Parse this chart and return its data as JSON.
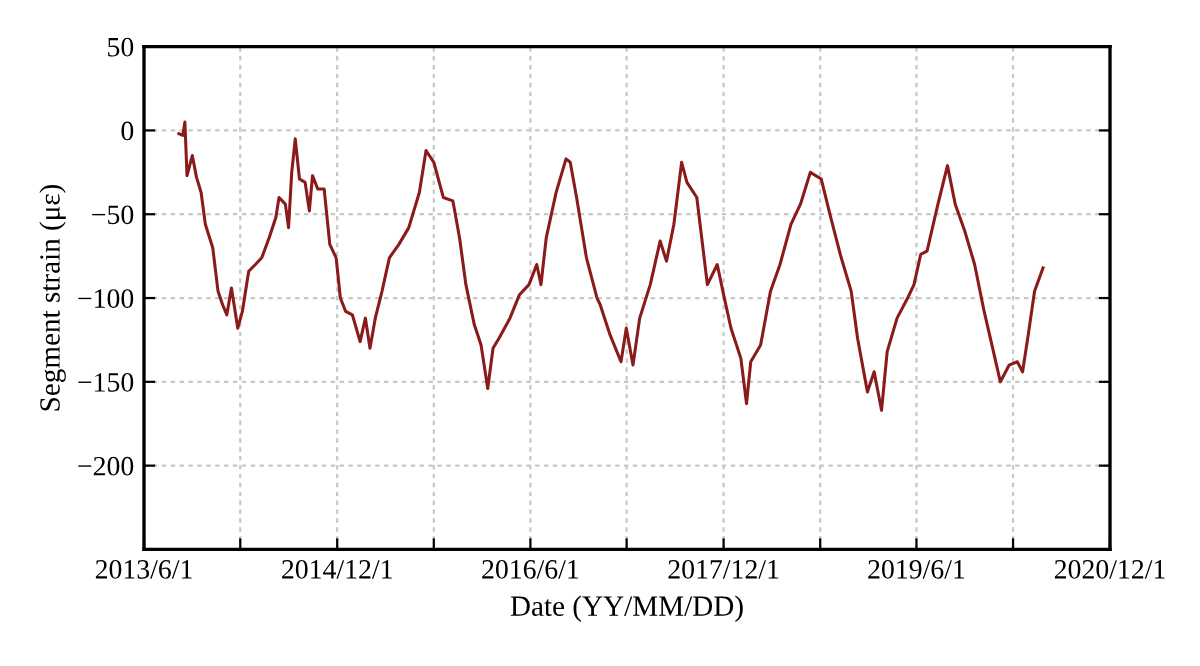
{
  "chart_data": {
    "type": "line",
    "xlabel": "Date (YY/MM/DD)",
    "ylabel": "Segment strain (με)",
    "xlim": [
      "2013-06-01",
      "2020-12-01"
    ],
    "ylim": [
      -250,
      50
    ],
    "yticks": [
      -200,
      -150,
      -100,
      -50,
      0,
      50
    ],
    "xticks": [
      {
        "value": "2013-06-01",
        "label": "2013/6/1"
      },
      {
        "value": "2014-03-01",
        "label": null
      },
      {
        "value": "2014-12-01",
        "label": "2014/12/1"
      },
      {
        "value": "2015-09-01",
        "label": null
      },
      {
        "value": "2016-06-01",
        "label": "2016/6/1"
      },
      {
        "value": "2017-03-01",
        "label": null
      },
      {
        "value": "2017-12-01",
        "label": "2017/12/1"
      },
      {
        "value": "2018-09-01",
        "label": null
      },
      {
        "value": "2019-06-01",
        "label": "2019/6/1"
      },
      {
        "value": "2020-03-01",
        "label": null
      },
      {
        "value": "2020-12-01",
        "label": "2020/12/1"
      }
    ],
    "grid": true,
    "legend": false,
    "line_style": "solid",
    "marker": "none",
    "series": [
      {
        "color": "#8b1a1a",
        "x": [
          "2013-09-08",
          "2013-09-19",
          "2013-09-25",
          "2013-10-01",
          "2013-10-16",
          "2013-10-28",
          "2013-11-10",
          "2013-11-22",
          "2013-12-13",
          "2013-12-28",
          "2014-01-10",
          "2014-01-22",
          "2014-02-04",
          "2014-02-22",
          "2014-03-07",
          "2014-03-25",
          "2014-04-13",
          "2014-05-01",
          "2014-05-22",
          "2014-06-10",
          "2014-06-19",
          "2014-07-07",
          "2014-07-16",
          "2014-07-25",
          "2014-08-04",
          "2014-08-16",
          "2014-09-01",
          "2014-09-13",
          "2014-09-22",
          "2014-10-07",
          "2014-10-25",
          "2014-11-10",
          "2014-11-28",
          "2014-12-10",
          "2014-12-25",
          "2015-01-13",
          "2015-02-04",
          "2015-02-19",
          "2015-03-04",
          "2015-03-19",
          "2015-04-07",
          "2015-04-28",
          "2015-05-25",
          "2015-06-22",
          "2015-07-22",
          "2015-08-10",
          "2015-09-01",
          "2015-09-28",
          "2015-10-25",
          "2015-11-13",
          "2015-12-01",
          "2015-12-25",
          "2016-01-13",
          "2016-02-01",
          "2016-02-16",
          "2016-03-04",
          "2016-04-04",
          "2016-05-01",
          "2016-05-28",
          "2016-06-19",
          "2016-07-01",
          "2016-07-16",
          "2016-08-13",
          "2016-09-10",
          "2016-09-22",
          "2016-10-10",
          "2016-11-07",
          "2016-12-07",
          "2016-12-16",
          "2017-01-13",
          "2017-02-13",
          "2017-02-28",
          "2017-03-19",
          "2017-04-07",
          "2017-05-07",
          "2017-06-04",
          "2017-06-22",
          "2017-07-13",
          "2017-08-04",
          "2017-08-19",
          "2017-09-16",
          "2017-10-16",
          "2017-11-13",
          "2017-12-01",
          "2017-12-22",
          "2018-01-19",
          "2018-02-04",
          "2018-02-16",
          "2018-03-16",
          "2018-04-13",
          "2018-05-10",
          "2018-06-10",
          "2018-07-07",
          "2018-08-04",
          "2018-09-04",
          "2018-10-01",
          "2018-10-28",
          "2018-11-28",
          "2018-12-16",
          "2019-01-13",
          "2019-02-01",
          "2019-02-22",
          "2019-03-10",
          "2019-04-07",
          "2019-05-07",
          "2019-05-25",
          "2019-06-13",
          "2019-07-01",
          "2019-08-01",
          "2019-08-28",
          "2019-09-19",
          "2019-10-16",
          "2019-11-13",
          "2019-12-10",
          "2020-01-01",
          "2020-01-25",
          "2020-02-19",
          "2020-03-13",
          "2020-03-28",
          "2020-04-13",
          "2020-05-01",
          "2020-05-25"
        ],
        "values": [
          -2,
          -3,
          5,
          -27,
          -15,
          -28,
          -37,
          -56,
          -70,
          -96,
          -104,
          -110,
          -94,
          -118,
          -108,
          -84,
          -80,
          -76,
          -64,
          -52,
          -40,
          -44,
          -58,
          -25,
          -5,
          -29,
          -31,
          -48,
          -27,
          -35,
          -35,
          -68,
          -76,
          -100,
          -108,
          -110,
          -126,
          -112,
          -130,
          -112,
          -96,
          -76,
          -68,
          -58,
          -37,
          -12,
          -19,
          -40,
          -42,
          -64,
          -92,
          -116,
          -128,
          -154,
          -130,
          -124,
          -112,
          -98,
          -92,
          -80,
          -92,
          -64,
          -37,
          -17,
          -19,
          -40,
          -76,
          -100,
          -104,
          -122,
          -138,
          -118,
          -140,
          -112,
          -92,
          -66,
          -78,
          -56,
          -19,
          -31,
          -40,
          -92,
          -80,
          -98,
          -118,
          -136,
          -163,
          -138,
          -128,
          -96,
          -80,
          -56,
          -44,
          -25,
          -29,
          -52,
          -74,
          -96,
          -124,
          -156,
          -144,
          -167,
          -132,
          -112,
          -100,
          -92,
          -74,
          -72,
          -44,
          -21,
          -44,
          -60,
          -80,
          -108,
          -128,
          -150,
          -140,
          -138,
          -144,
          -122,
          -96,
          -82
        ]
      }
    ]
  }
}
